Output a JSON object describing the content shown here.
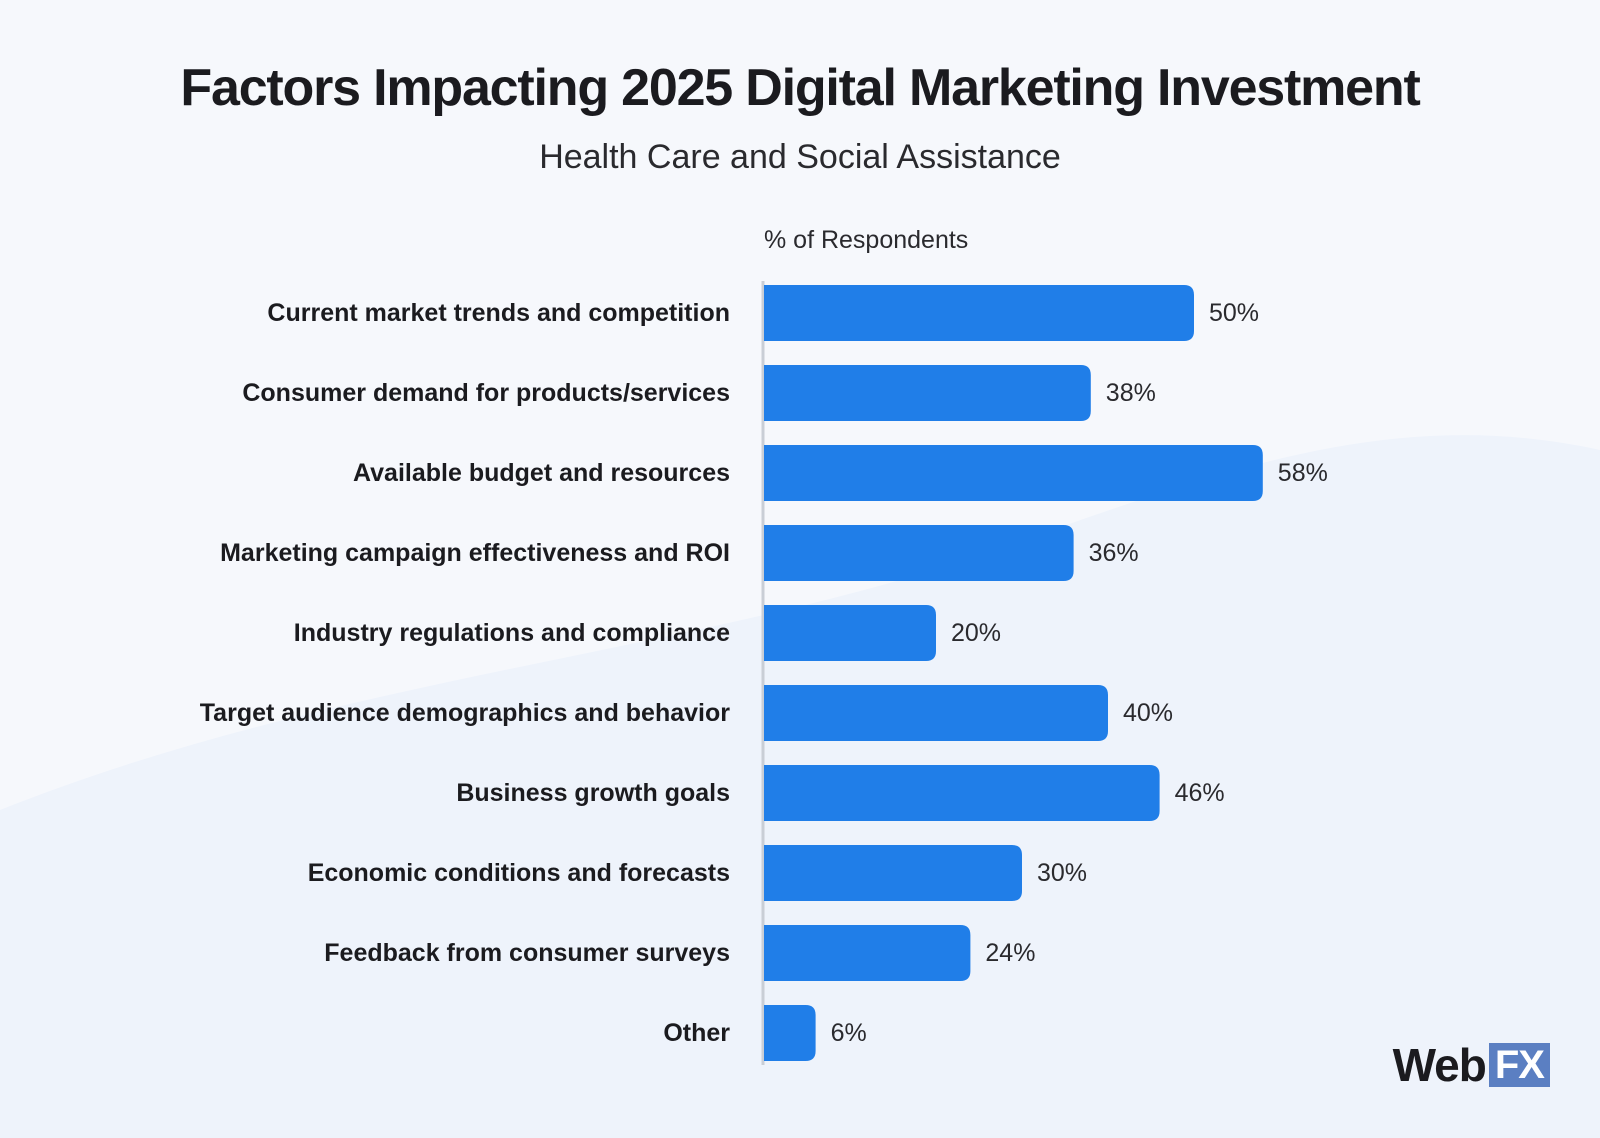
{
  "header": {
    "title": "Factors Impacting 2025 Digital Marketing Investment",
    "subtitle": "Health Care and Social Assistance"
  },
  "brand": {
    "logo_word": "Web",
    "logo_mark": "FX"
  },
  "colors": {
    "bar": "#207ee8",
    "axis": "#c9ced6",
    "label": "#1b1b1f",
    "background": "#f6f8fc"
  },
  "chart_data": {
    "type": "bar",
    "orientation": "horizontal",
    "xlabel": "% of Respondents",
    "categories": [
      "Current market trends and competition",
      "Consumer demand for products/services",
      "Available budget and resources",
      "Marketing campaign effectiveness and ROI",
      "Industry regulations and compliance",
      "Target audience demographics and behavior",
      "Business growth goals",
      "Economic conditions and forecasts",
      "Feedback from consumer surveys",
      "Other"
    ],
    "values": [
      50,
      38,
      58,
      36,
      20,
      40,
      46,
      30,
      24,
      6
    ],
    "value_labels": [
      "50%",
      "38%",
      "58%",
      "36%",
      "20%",
      "40%",
      "46%",
      "30%",
      "24%",
      "6%"
    ],
    "unit": "%",
    "grid": false,
    "legend": "none"
  }
}
